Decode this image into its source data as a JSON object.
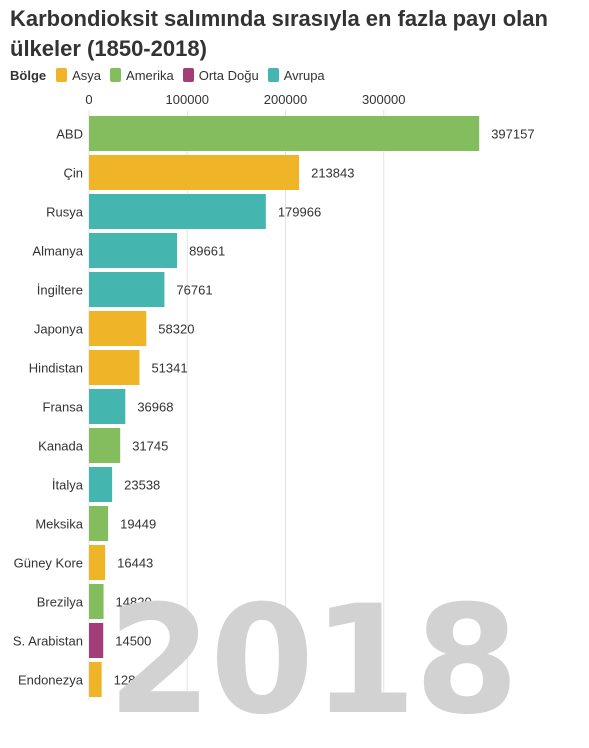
{
  "title": "Karbondioksit salımında sırasıyla en fazla payı olan ülkeler (1850-2018)",
  "legend": {
    "title": "Bölge",
    "items": [
      {
        "label": "Asya",
        "color": "#f0b429"
      },
      {
        "label": "Amerika",
        "color": "#84bd5e"
      },
      {
        "label": "Orta Doğu",
        "color": "#a33d78"
      },
      {
        "label": "Avrupa",
        "color": "#45b5b0"
      }
    ]
  },
  "year": "2018",
  "chart_data": {
    "type": "bar",
    "orientation": "horizontal",
    "title": "Karbondioksit salımında sırasıyla en fazla payı olan ülkeler (1850-2018)",
    "xlabel": "",
    "ylabel": "",
    "xlim": [
      0,
      400000
    ],
    "x_ticks": [
      0,
      100000,
      200000,
      300000
    ],
    "x_tick_labels": [
      "0",
      "100000",
      "200000",
      "300000"
    ],
    "grid": true,
    "legend_position": "top-left",
    "categories": [
      "ABD",
      "Çin",
      "Rusya",
      "Almanya",
      "İngiltere",
      "Japonya",
      "Hindistan",
      "Fransa",
      "Kanada",
      "İtalya",
      "Meksika",
      "Güney Kore",
      "Brezilya",
      "S. Arabistan",
      "Endonezya"
    ],
    "values": [
      397157,
      213843,
      179966,
      89661,
      76761,
      58320,
      51341,
      36968,
      31745,
      23538,
      19449,
      16443,
      14820,
      14500,
      12899
    ],
    "regions": [
      "Amerika",
      "Asya",
      "Avrupa",
      "Avrupa",
      "Avrupa",
      "Asya",
      "Asya",
      "Avrupa",
      "Amerika",
      "Avrupa",
      "Amerika",
      "Asya",
      "Amerika",
      "Orta Doğu",
      "Asya"
    ]
  }
}
